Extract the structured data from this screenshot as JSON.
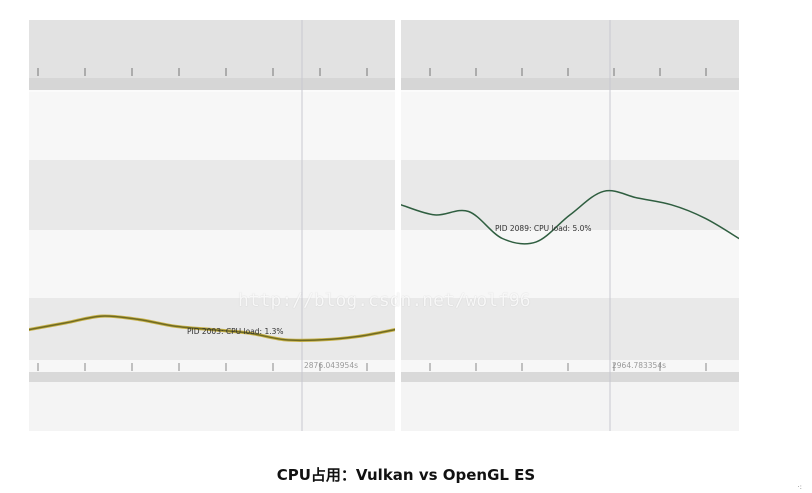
{
  "caption": "CPU占用：Vulkan vs OpenGL ES",
  "watermark": "http://blog.csdn.net/wolf96",
  "corner_mark": "·:",
  "colors": {
    "vulkan_line": "#6f6a22",
    "vulkan_line_highlight": "#c8b24a",
    "opengl_line": "#2f5e40",
    "cursor": "#c8c8d0",
    "band_dark": "#e9e9e9",
    "band_light": "#f7f7f7",
    "track_header": "#e2e2e2"
  },
  "chart_data": [
    {
      "type": "line",
      "title": "",
      "xlabel": "",
      "ylabel": "",
      "ylim": [
        0,
        8
      ],
      "series": [
        {
          "annotation": "PID 2003: CPU load: 1.3%",
          "x": [
            0,
            10,
            20,
            30,
            40,
            50,
            60,
            70,
            80,
            90,
            100
          ],
          "y": [
            0.9,
            1.1,
            1.3,
            1.2,
            1.0,
            0.9,
            0.8,
            0.6,
            0.6,
            0.7,
            0.9
          ]
        }
      ],
      "timestamp": "2876.043954s"
    },
    {
      "type": "line",
      "title": "",
      "xlabel": "",
      "ylabel": "",
      "ylim": [
        0,
        8
      ],
      "series": [
        {
          "annotation": "PID 2089: CPU load: 5.0%",
          "x": [
            0,
            10,
            20,
            30,
            40,
            50,
            60,
            70,
            80,
            90,
            100
          ],
          "y": [
            4.6,
            4.3,
            4.4,
            3.6,
            3.5,
            4.3,
            5.0,
            4.8,
            4.6,
            4.2,
            3.6
          ]
        }
      ],
      "timestamp": "2964.783354s"
    }
  ]
}
